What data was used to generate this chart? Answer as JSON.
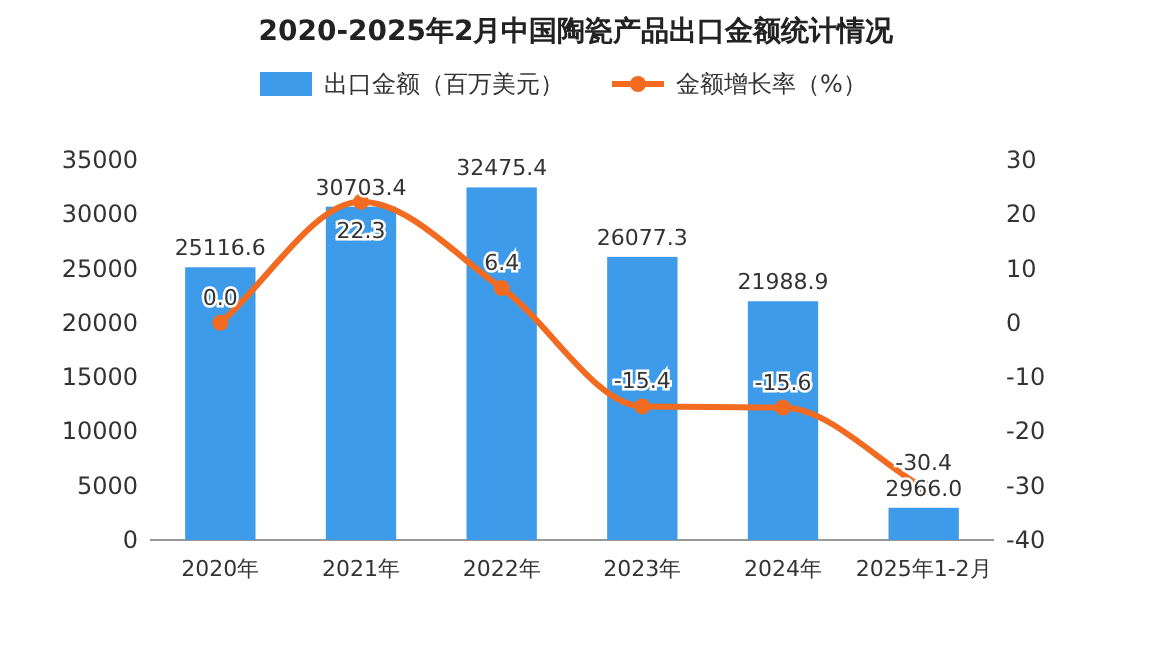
{
  "chart_data": {
    "type": "bar",
    "title": "2020-2025年2月中国陶瓷产品出口金额统计情况",
    "categories": [
      "2020年",
      "2021年",
      "2022年",
      "2023年",
      "2024年",
      "2025年1-2月"
    ],
    "series": [
      {
        "name": "出口金额（百万美元）",
        "color": "#3d9be9",
        "values": [
          25116.6,
          30703.4,
          32475.4,
          26077.3,
          21988.9,
          2966.0
        ],
        "value_labels": [
          "25116.6",
          "30703.4",
          "32475.4",
          "26077.3",
          "21988.9",
          "2966.0"
        ]
      },
      {
        "name": "金额增长率（%）",
        "type": "line",
        "axis": "y2",
        "color": "#f26b21",
        "values": [
          0.0,
          22.3,
          6.4,
          -15.4,
          -15.6,
          -30.4
        ],
        "value_labels": [
          "0.0",
          "22.3",
          "6.4",
          "-15.4",
          "-15.6",
          "-30.4"
        ]
      }
    ],
    "ylim": [
      0,
      35000
    ],
    "yticks": [
      0,
      5000,
      10000,
      15000,
      20000,
      25000,
      30000,
      35000
    ],
    "y2lim": [
      -40,
      30
    ],
    "y2ticks": [
      -40,
      -30,
      -20,
      -10,
      0,
      10,
      20,
      30
    ],
    "marker": "circle",
    "legend": "top",
    "grid": false
  }
}
